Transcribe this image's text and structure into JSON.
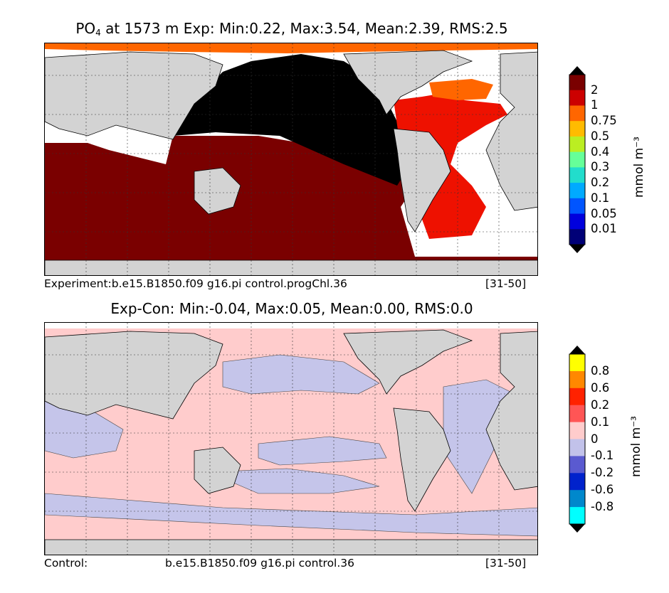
{
  "top_panel": {
    "title_prefix": "PO",
    "title_subscript": "4",
    "title_rest": " at 1573 m Exp: Min:0.22, Max:3.54, Mean:2.39, RMS:2.5",
    "caption_left": "Experiment:b.e15.B1850.f09 g16.pi control.progChl.36",
    "caption_right": "[31-50]",
    "colorbar_label": "mmol m⁻³",
    "colorbar_ticks": [
      "2",
      "1",
      "0.75",
      "0.5",
      "0.4",
      "0.3",
      "0.2",
      "0.1",
      "0.05",
      "0.01"
    ],
    "colorbar_colors": [
      "#7a0000",
      "#cc0000",
      "#ff6600",
      "#ffbb00",
      "#bbee22",
      "#66ff99",
      "#22ddcc",
      "#00aaff",
      "#0055ff",
      "#0000dd",
      "#000077"
    ],
    "field_colors": {
      "pacific": "#000000",
      "indian_southern": "#7a0000",
      "atlantic": "#ee1100",
      "arctic": "#ff6600",
      "land": "#d3d3d3"
    }
  },
  "bottom_panel": {
    "title": "Exp-Con: Min:-0.04, Max:0.05, Mean:0.00, RMS:0.0",
    "caption_left": "Control:",
    "caption_mid": "b.e15.B1850.f09 g16.pi control.36",
    "caption_right": "[31-50]",
    "colorbar_label": "mmol m⁻³",
    "colorbar_ticks": [
      "0.8",
      "0.6",
      "0.2",
      "0.1",
      "0",
      "-0.1",
      "-0.2",
      "-0.6",
      "-0.8"
    ],
    "colorbar_colors": [
      "#ffff00",
      "#ff8800",
      "#ff2200",
      "#ff5555",
      "#ffcccc",
      "#c2c2ea",
      "#5a5ad0",
      "#0022cc",
      "#0088cc",
      "#00ffff"
    ],
    "field_colors": {
      "positive": "#ffcccc",
      "negative": "#c5c5ea",
      "land": "#d3d3d3"
    }
  }
}
